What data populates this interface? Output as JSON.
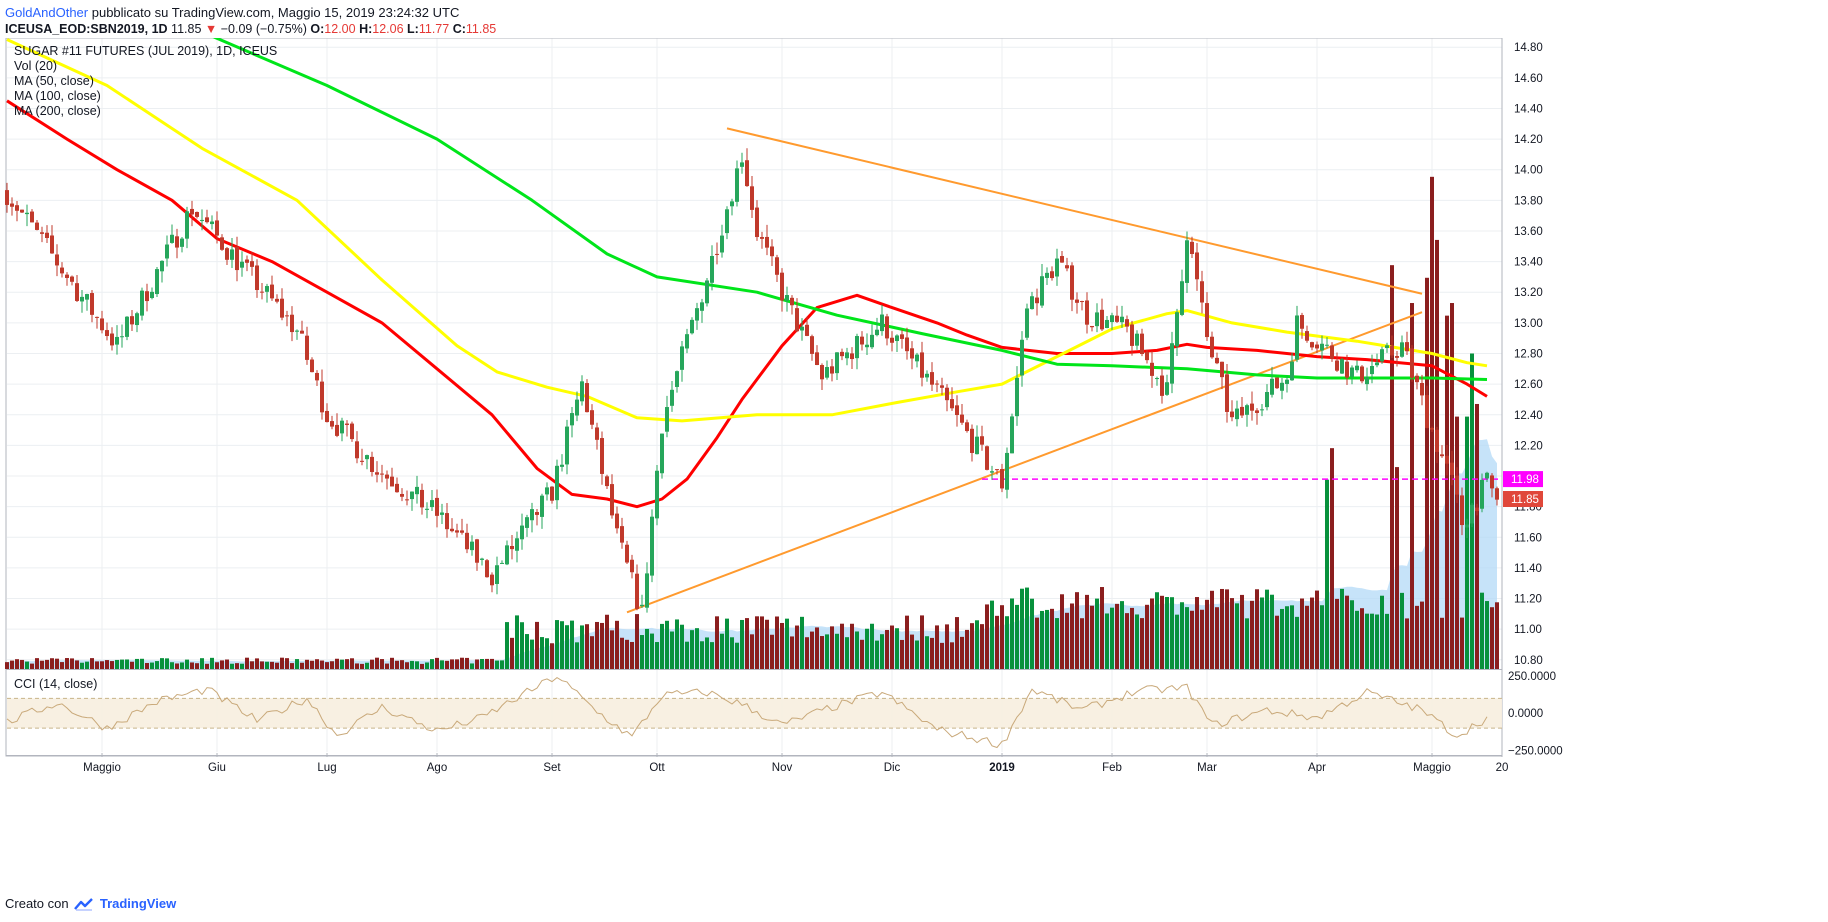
{
  "header": {
    "author": "GoldAndOther",
    "published": "pubblicato su TradingView.com, Maggio 15, 2019 23:24:32 UTC",
    "symbol": "ICEUSA_EOD:SBN2019, 1D",
    "last": "11.85",
    "change_arrow": "▼",
    "change": "−0.09 (−0.75%)",
    "o_label": "O:",
    "o_value": "12.00",
    "h_label": "H:",
    "h_value": "12.06",
    "l_label": "L:",
    "l_value": "11.77",
    "c_label": "C:",
    "c_value": "11.85"
  },
  "legend": [
    "SUGAR #11 FUTURES (JUL 2019), 1D, ICEUS",
    "Vol (20)",
    "MA (50, close)",
    "MA (100, close)",
    "MA (200, close)"
  ],
  "indicator_label": "CCI (14, close)",
  "footer": {
    "prefix": "Creato con",
    "brand": "TradingView"
  },
  "colors": {
    "up": "#26a65b",
    "down": "#c0392b",
    "ma50": "#ff0000",
    "ma100": "#ffff00",
    "ma200": "#00e51a",
    "trend": "#ff9a2e",
    "support": "#ff00ff",
    "vol_up": "#07913c",
    "vol_down": "#8b1e1e",
    "vol_ma": "#b3d9f7",
    "cci": "#c9a97a"
  },
  "chart_data": {
    "type": "candlestick",
    "title": "SUGAR #11 FUTURES (JUL 2019), 1D, ICEUS",
    "price_axis": {
      "ticks": [
        "14.80",
        "14.60",
        "14.40",
        "14.20",
        "14.00",
        "13.80",
        "13.60",
        "13.40",
        "13.20",
        "13.00",
        "12.80",
        "12.60",
        "12.40",
        "12.20",
        "12.00",
        "11.80",
        "11.60",
        "11.40",
        "11.20",
        "11.00",
        "10.80"
      ],
      "ylim": [
        10.74,
        14.86
      ]
    },
    "cci_axis": {
      "ticks": [
        "250.0000",
        "0.0000",
        "−250.0000"
      ],
      "ylim": [
        -260,
        290
      ],
      "band": [
        -100,
        100
      ]
    },
    "time_axis": {
      "labels": [
        "Maggio",
        "Giu",
        "Lug",
        "Ago",
        "Set",
        "Ott",
        "Nov",
        "Dic",
        "2019",
        "Feb",
        "Mar",
        "Apr",
        "Maggio",
        "20"
      ],
      "label_day_index": [
        19,
        42,
        64,
        86,
        109,
        130,
        155,
        177,
        199,
        221,
        240,
        262,
        285,
        299
      ]
    },
    "last_price_label": "11.85",
    "support_label": "11.98",
    "support_level": 11.98,
    "price_points": [
      [
        0,
        13.85
      ],
      [
        22,
        12.85
      ],
      [
        37,
        13.75
      ],
      [
        58,
        12.95
      ],
      [
        64,
        12.4
      ],
      [
        74,
        12.05
      ],
      [
        86,
        11.75
      ],
      [
        97,
        11.35
      ],
      [
        109,
        11.9
      ],
      [
        115,
        12.6
      ],
      [
        122,
        11.6
      ],
      [
        127,
        11.1
      ],
      [
        131,
        12.35
      ],
      [
        140,
        13.3
      ],
      [
        147,
        14.1
      ],
      [
        150,
        13.6
      ],
      [
        155,
        13.2
      ],
      [
        163,
        12.65
      ],
      [
        175,
        13.0
      ],
      [
        186,
        12.55
      ],
      [
        199,
        11.95
      ],
      [
        204,
        13.1
      ],
      [
        210,
        13.4
      ],
      [
        216,
        13.05
      ],
      [
        224,
        12.95
      ],
      [
        232,
        12.55
      ],
      [
        236,
        13.6
      ],
      [
        240,
        12.9
      ],
      [
        245,
        12.35
      ],
      [
        256,
        12.65
      ],
      [
        258,
        13.0
      ],
      [
        270,
        12.65
      ],
      [
        279,
        12.85
      ],
      [
        285,
        12.3
      ],
      [
        289,
        11.95
      ],
      [
        291,
        11.7
      ],
      [
        296,
        11.95
      ],
      [
        298,
        11.85
      ]
    ],
    "series": [
      {
        "name": "MA (50, close)",
        "points": [
          [
            0,
            14.45
          ],
          [
            12,
            14.2
          ],
          [
            22,
            14.0
          ],
          [
            33,
            13.8
          ],
          [
            42,
            13.55
          ],
          [
            53,
            13.4
          ],
          [
            64,
            13.2
          ],
          [
            75,
            13.0
          ],
          [
            86,
            12.7
          ],
          [
            97,
            12.4
          ],
          [
            106,
            12.05
          ],
          [
            113,
            11.88
          ],
          [
            120,
            11.85
          ],
          [
            126,
            11.8
          ],
          [
            131,
            11.85
          ],
          [
            136,
            11.98
          ],
          [
            142,
            12.25
          ],
          [
            147,
            12.5
          ],
          [
            155,
            12.85
          ],
          [
            162,
            13.1
          ],
          [
            170,
            13.18
          ],
          [
            177,
            13.1
          ],
          [
            186,
            13.0
          ],
          [
            192,
            12.92
          ],
          [
            199,
            12.84
          ],
          [
            210,
            12.8
          ],
          [
            221,
            12.8
          ],
          [
            230,
            12.82
          ],
          [
            236,
            12.86
          ],
          [
            240,
            12.84
          ],
          [
            250,
            12.82
          ],
          [
            262,
            12.78
          ],
          [
            272,
            12.76
          ],
          [
            285,
            12.72
          ],
          [
            292,
            12.6
          ],
          [
            296,
            12.52
          ]
        ]
      },
      {
        "name": "MA (100, close)",
        "points": [
          [
            0,
            14.85
          ],
          [
            20,
            14.55
          ],
          [
            39,
            14.14
          ],
          [
            58,
            13.8
          ],
          [
            75,
            13.28
          ],
          [
            90,
            12.85
          ],
          [
            98,
            12.68
          ],
          [
            108,
            12.58
          ],
          [
            116,
            12.52
          ],
          [
            126,
            12.38
          ],
          [
            135,
            12.36
          ],
          [
            150,
            12.4
          ],
          [
            165,
            12.4
          ],
          [
            178,
            12.48
          ],
          [
            190,
            12.55
          ],
          [
            199,
            12.6
          ],
          [
            210,
            12.78
          ],
          [
            221,
            12.96
          ],
          [
            232,
            13.06
          ],
          [
            236,
            13.08
          ],
          [
            245,
            13.0
          ],
          [
            256,
            12.94
          ],
          [
            270,
            12.88
          ],
          [
            285,
            12.8
          ],
          [
            292,
            12.74
          ],
          [
            296,
            12.72
          ]
        ]
      },
      {
        "name": "MA (200, close)",
        "points": [
          [
            0,
            15.1
          ],
          [
            39,
            14.9
          ],
          [
            64,
            14.55
          ],
          [
            86,
            14.2
          ],
          [
            105,
            13.8
          ],
          [
            120,
            13.45
          ],
          [
            130,
            13.3
          ],
          [
            150,
            13.2
          ],
          [
            166,
            13.05
          ],
          [
            183,
            12.93
          ],
          [
            199,
            12.82
          ],
          [
            210,
            12.73
          ],
          [
            221,
            12.72
          ],
          [
            236,
            12.7
          ],
          [
            250,
            12.66
          ],
          [
            262,
            12.64
          ],
          [
            285,
            12.64
          ],
          [
            296,
            12.63
          ]
        ]
      },
      {
        "name": "CCI (14, close)",
        "points": [
          [
            0,
            -60
          ],
          [
            10,
            70
          ],
          [
            20,
            -100
          ],
          [
            30,
            80
          ],
          [
            40,
            160
          ],
          [
            50,
            -50
          ],
          [
            60,
            100
          ],
          [
            66,
            -150
          ],
          [
            75,
            40
          ],
          [
            86,
            -120
          ],
          [
            95,
            -30
          ],
          [
            103,
            120
          ],
          [
            110,
            250
          ],
          [
            118,
            10
          ],
          [
            125,
            -160
          ],
          [
            131,
            120
          ],
          [
            140,
            140
          ],
          [
            147,
            60
          ],
          [
            155,
            -80
          ],
          [
            165,
            40
          ],
          [
            175,
            140
          ],
          [
            186,
            -110
          ],
          [
            199,
            -210
          ],
          [
            205,
            160
          ],
          [
            215,
            20
          ],
          [
            226,
            150
          ],
          [
            236,
            170
          ],
          [
            241,
            -80
          ],
          [
            252,
            20
          ],
          [
            262,
            -30
          ],
          [
            272,
            140
          ],
          [
            283,
            20
          ],
          [
            290,
            -150
          ],
          [
            296,
            -30
          ]
        ]
      }
    ],
    "trendlines": [
      {
        "name": "upper",
        "from": [
          144,
          14.27
        ],
        "to": [
          283,
          13.19
        ]
      },
      {
        "name": "lower",
        "from": [
          124,
          11.11
        ],
        "to": [
          283,
          13.07
        ]
      },
      {
        "name": "support",
        "from": [
          195,
          11.98
        ],
        "to": [
          299,
          11.98
        ]
      }
    ],
    "volume_profile": {
      "spikes": [
        [
          264,
          0.3
        ],
        [
          265,
          0.35
        ],
        [
          277,
          0.64
        ],
        [
          278,
          0.32
        ],
        [
          281,
          0.58
        ],
        [
          284,
          0.62
        ],
        [
          285,
          0.78
        ],
        [
          286,
          0.68
        ],
        [
          288,
          0.56
        ],
        [
          289,
          0.58
        ],
        [
          290,
          0.4
        ],
        [
          292,
          0.4
        ],
        [
          293,
          0.5
        ],
        [
          294,
          0.42
        ]
      ]
    }
  }
}
